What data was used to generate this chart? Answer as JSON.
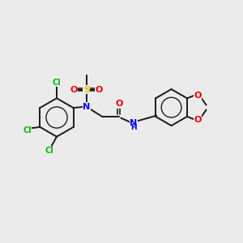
{
  "bg_color": "#ebebeb",
  "bond_color": "#1a1a1a",
  "bond_width": 1.4,
  "cl_color": "#00bb00",
  "n_color": "#0000ee",
  "o_color": "#ee0000",
  "s_color": "#cccc00",
  "nh_color": "#0000ee",
  "figsize": [
    3.0,
    3.0
  ],
  "dpi": 100,
  "xlim": [
    0,
    12
  ],
  "ylim": [
    0,
    10
  ]
}
